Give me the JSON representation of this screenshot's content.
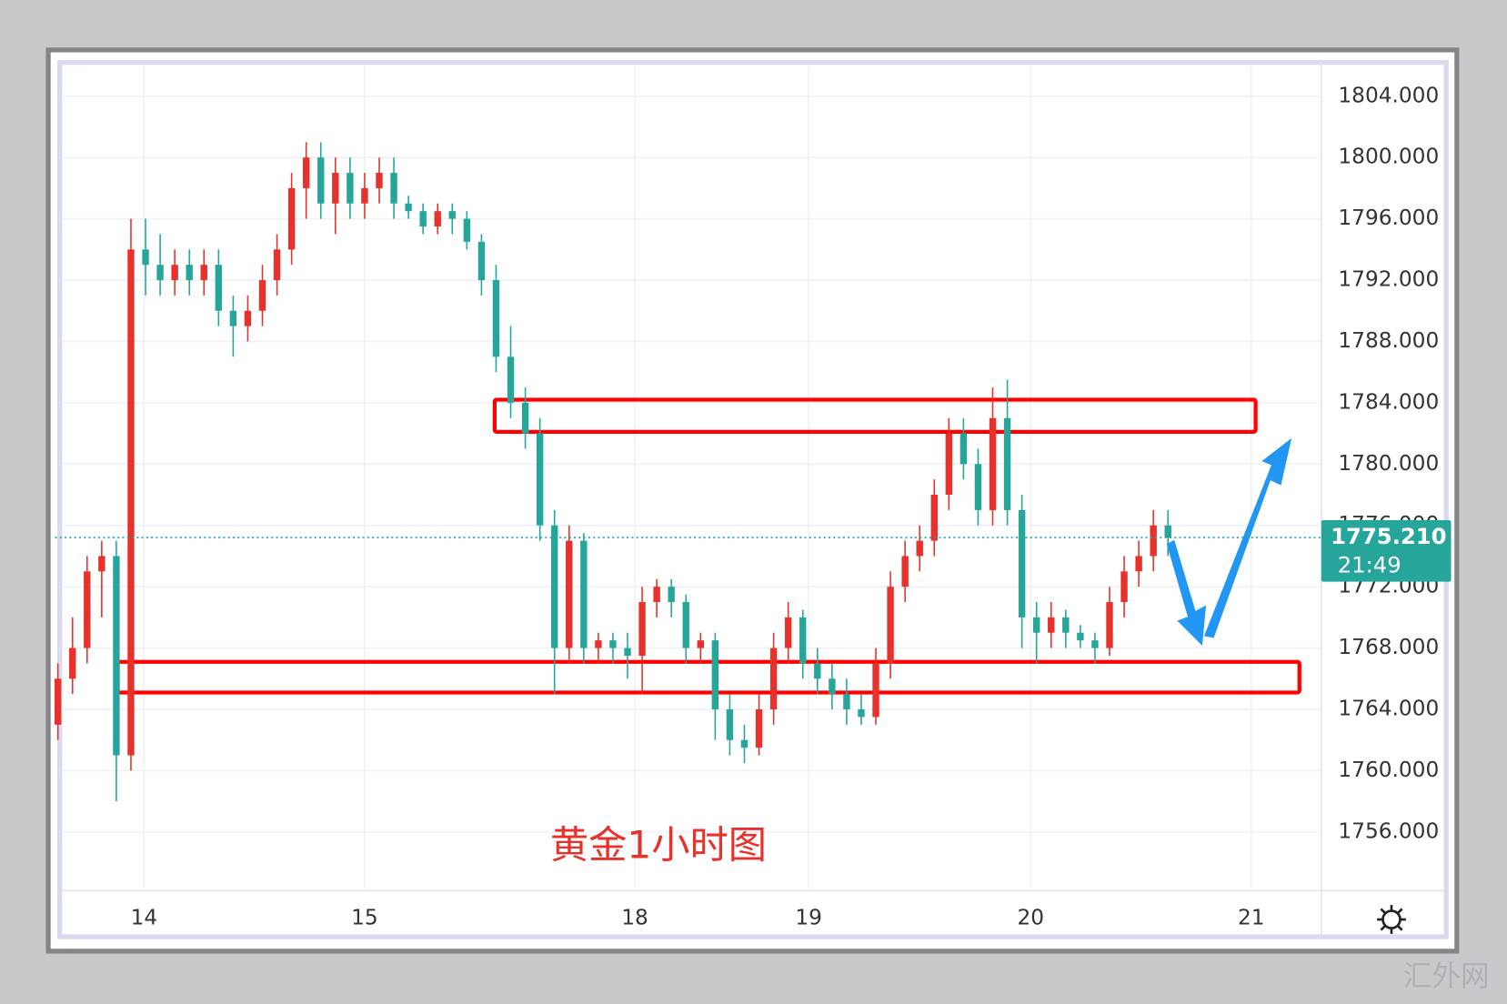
{
  "chart_data": {
    "type": "candlestick",
    "title": "黄金1小时图",
    "watermark": "汇外网",
    "countdown": "21:49",
    "up_color": "#e8312b",
    "down_color": "#26a69a",
    "grid": true,
    "xlim": [
      -0.2,
      86.5
    ],
    "ylim": [
      1752.3,
      1806.2
    ],
    "xticks": [
      {
        "value": 5.9,
        "label": "14"
      },
      {
        "value": 21,
        "label": "15"
      },
      {
        "value": 39.5,
        "label": "18"
      },
      {
        "value": 51.4,
        "label": "19"
      },
      {
        "value": 66.6,
        "label": "20"
      },
      {
        "value": 81.7,
        "label": "21"
      }
    ],
    "yticks": [
      {
        "value": 1756,
        "label": "1756.000"
      },
      {
        "value": 1760,
        "label": "1760.000"
      },
      {
        "value": 1764,
        "label": "1764.000"
      },
      {
        "value": 1768,
        "label": "1768.000"
      },
      {
        "value": 1772,
        "label": "1772.000"
      },
      {
        "value": 1776,
        "label": "1776.000"
      },
      {
        "value": 1780,
        "label": "1780.000"
      },
      {
        "value": 1784,
        "label": "1784.000"
      },
      {
        "value": 1788,
        "label": "1788.000"
      },
      {
        "value": 1792,
        "label": "1792.000"
      },
      {
        "value": 1796,
        "label": "1796.000"
      },
      {
        "value": 1800,
        "label": "1800.000"
      },
      {
        "value": 1804,
        "label": "1804.000"
      }
    ],
    "last_price": {
      "value": 1775.21,
      "label": "1775.210"
    },
    "zones": [
      {
        "xmin": 29.9,
        "xmax": 82,
        "ymin": 1782.1,
        "ymax": 1784.2
      },
      {
        "xmin": 4.1,
        "xmax": 85,
        "ymin": 1765.1,
        "ymax": 1767.1
      }
    ],
    "ohlc": [
      [
        1763,
        1767,
        1762,
        1766
      ],
      [
        1766,
        1770,
        1765,
        1768
      ],
      [
        1768,
        1774,
        1767,
        1773
      ],
      [
        1773,
        1775,
        1770,
        1774
      ],
      [
        1774,
        1775,
        1758,
        1761
      ],
      [
        1761,
        1796,
        1760,
        1794
      ],
      [
        1794,
        1796,
        1791,
        1793
      ],
      [
        1793,
        1795,
        1791,
        1792
      ],
      [
        1792,
        1794,
        1791,
        1793
      ],
      [
        1793,
        1794,
        1791,
        1792
      ],
      [
        1792,
        1794,
        1791,
        1793
      ],
      [
        1793,
        1794,
        1789,
        1790
      ],
      [
        1790,
        1791,
        1787,
        1789
      ],
      [
        1789,
        1791,
        1788,
        1790
      ],
      [
        1790,
        1793,
        1789,
        1792
      ],
      [
        1792,
        1795,
        1791,
        1794
      ],
      [
        1794,
        1799,
        1793,
        1798
      ],
      [
        1798,
        1801,
        1796,
        1800
      ],
      [
        1800,
        1801,
        1796,
        1797
      ],
      [
        1797,
        1800,
        1795,
        1799
      ],
      [
        1799,
        1800,
        1796,
        1797
      ],
      [
        1797,
        1799,
        1796,
        1798
      ],
      [
        1798,
        1800,
        1797,
        1799
      ],
      [
        1799,
        1800,
        1796,
        1797
      ],
      [
        1797,
        1797.5,
        1796,
        1796.5
      ],
      [
        1796.5,
        1797,
        1795,
        1795.5
      ],
      [
        1795.5,
        1797,
        1795,
        1796.5
      ],
      [
        1796.5,
        1797,
        1795,
        1796
      ],
      [
        1796,
        1796.5,
        1794,
        1794.5
      ],
      [
        1794.5,
        1795,
        1791,
        1792
      ],
      [
        1792,
        1793,
        1786,
        1787
      ],
      [
        1787,
        1789,
        1783,
        1784
      ],
      [
        1784,
        1785,
        1781,
        1782
      ],
      [
        1782,
        1783,
        1775,
        1776
      ],
      [
        1776,
        1777,
        1765,
        1768
      ],
      [
        1768,
        1776,
        1767,
        1775
      ],
      [
        1775,
        1775.5,
        1767,
        1768
      ],
      [
        1768,
        1769,
        1767,
        1768.5
      ],
      [
        1768.5,
        1769,
        1767,
        1768
      ],
      [
        1768,
        1769,
        1766,
        1767.5
      ],
      [
        1767.5,
        1772,
        1765,
        1771
      ],
      [
        1771,
        1772.5,
        1770,
        1772
      ],
      [
        1772,
        1772.5,
        1770,
        1771
      ],
      [
        1771,
        1771.5,
        1767,
        1768
      ],
      [
        1768,
        1769,
        1767,
        1768.5
      ],
      [
        1768.5,
        1769,
        1762,
        1764
      ],
      [
        1764,
        1765,
        1761,
        1762
      ],
      [
        1762,
        1763,
        1760.5,
        1761.5
      ],
      [
        1761.5,
        1765,
        1761,
        1764
      ],
      [
        1764,
        1769,
        1763,
        1768
      ],
      [
        1768,
        1771,
        1767,
        1770
      ],
      [
        1770,
        1770.5,
        1766,
        1767
      ],
      [
        1767,
        1768,
        1765,
        1766
      ],
      [
        1766,
        1767,
        1764,
        1765
      ],
      [
        1765,
        1766,
        1763,
        1764
      ],
      [
        1764,
        1765,
        1763,
        1763.5
      ],
      [
        1763.5,
        1768,
        1763,
        1767
      ],
      [
        1767,
        1773,
        1766,
        1772
      ],
      [
        1772,
        1775,
        1771,
        1774
      ],
      [
        1774,
        1776,
        1773,
        1775
      ],
      [
        1775,
        1779,
        1774,
        1778
      ],
      [
        1778,
        1783,
        1777,
        1782
      ],
      [
        1782,
        1783,
        1779,
        1780
      ],
      [
        1780,
        1781,
        1776,
        1777
      ],
      [
        1777,
        1785,
        1776,
        1783
      ],
      [
        1783,
        1785.5,
        1776,
        1777
      ],
      [
        1777,
        1778,
        1768,
        1770
      ],
      [
        1770,
        1771,
        1767,
        1769
      ],
      [
        1769,
        1771,
        1768,
        1770
      ],
      [
        1770,
        1770.5,
        1768,
        1769
      ],
      [
        1769,
        1769.5,
        1768,
        1768.5
      ],
      [
        1768.5,
        1769,
        1767,
        1768
      ],
      [
        1768,
        1772,
        1767.5,
        1771
      ],
      [
        1771,
        1774,
        1770,
        1773
      ],
      [
        1773,
        1775,
        1772,
        1774
      ],
      [
        1774,
        1777,
        1773,
        1776
      ],
      [
        1776,
        1777,
        1774,
        1775.21
      ]
    ]
  }
}
